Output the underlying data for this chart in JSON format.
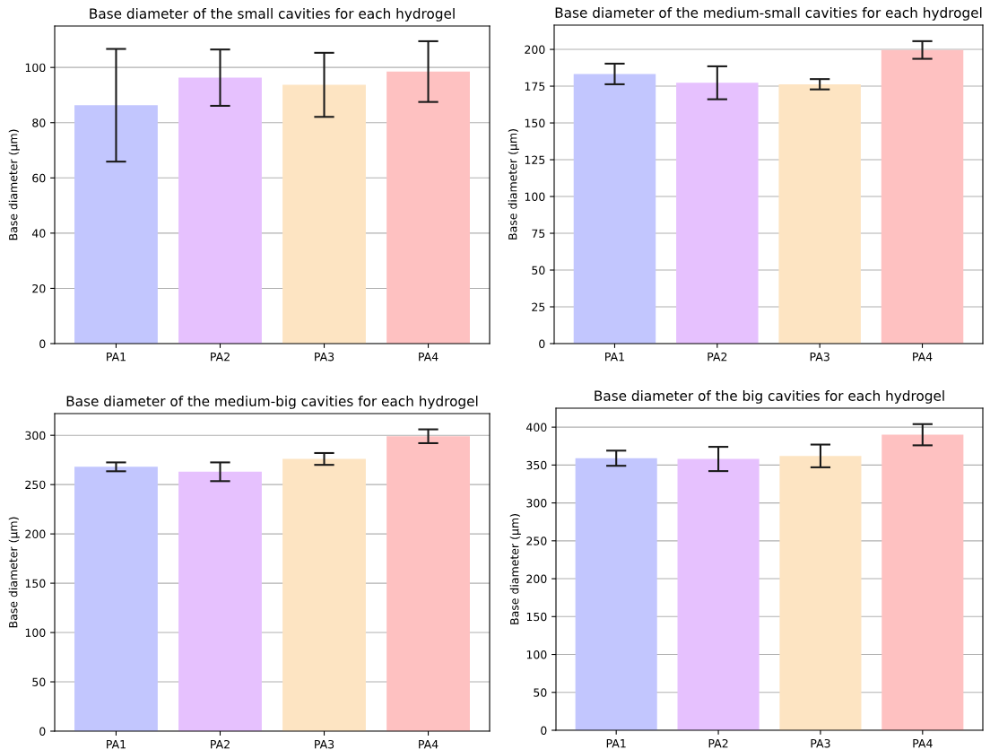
{
  "chart_data": [
    {
      "type": "bar",
      "title": "Base diameter of the small cavities for each hydrogel",
      "ylabel": "Base diameter (µm)",
      "categories": [
        "PA1",
        "PA2",
        "PA3",
        "PA4"
      ],
      "values": [
        86.3,
        96.3,
        93.7,
        98.5
      ],
      "errors": [
        20.4,
        10.2,
        11.6,
        11.0
      ],
      "colors": [
        "#c2c6fe",
        "#e6c1fe",
        "#fde4c2",
        "#fec1c1"
      ],
      "ylim": [
        0,
        115
      ],
      "yticks": [
        0,
        20,
        40,
        60,
        80,
        100
      ],
      "grid": "y"
    },
    {
      "type": "bar",
      "title": "Base diameter of the medium-small cavities for each hydrogel",
      "ylabel": "Base diameter (µm)",
      "categories": [
        "PA1",
        "PA2",
        "PA3",
        "PA4"
      ],
      "values": [
        183.3,
        177.3,
        176.3,
        199.6
      ],
      "errors": [
        7.0,
        11.2,
        3.5,
        6.0
      ],
      "colors": [
        "#c2c6fe",
        "#e6c1fe",
        "#fde4c2",
        "#fec1c1"
      ],
      "ylim": [
        0,
        216.5
      ],
      "yticks": [
        0,
        25,
        50,
        75,
        100,
        125,
        150,
        175,
        200
      ],
      "grid": "y"
    },
    {
      "type": "bar",
      "title": "Base diameter of the medium-big cavities for each hydrogel",
      "ylabel": "Base diameter (µm)",
      "categories": [
        "PA1",
        "PA2",
        "PA3",
        "PA4"
      ],
      "values": [
        268,
        263,
        276,
        299
      ],
      "errors": [
        4.5,
        9.5,
        6,
        7
      ],
      "colors": [
        "#c2c6fe",
        "#e6c1fe",
        "#fde4c2",
        "#fec1c1"
      ],
      "ylim": [
        0,
        322
      ],
      "yticks": [
        0,
        50,
        100,
        150,
        200,
        250,
        300
      ],
      "grid": "y"
    },
    {
      "type": "bar",
      "title": "Base diameter of the big cavities for each hydrogel",
      "ylabel": "Base diameter (µm)",
      "categories": [
        "PA1",
        "PA2",
        "PA3",
        "PA4"
      ],
      "values": [
        359,
        358,
        362,
        390
      ],
      "errors": [
        10,
        16,
        15,
        14
      ],
      "colors": [
        "#c2c6fe",
        "#e6c1fe",
        "#fde4c2",
        "#fec1c1"
      ],
      "ylim": [
        0,
        425
      ],
      "yticks": [
        0,
        50,
        100,
        150,
        200,
        250,
        300,
        350,
        400
      ],
      "grid": "y"
    }
  ]
}
